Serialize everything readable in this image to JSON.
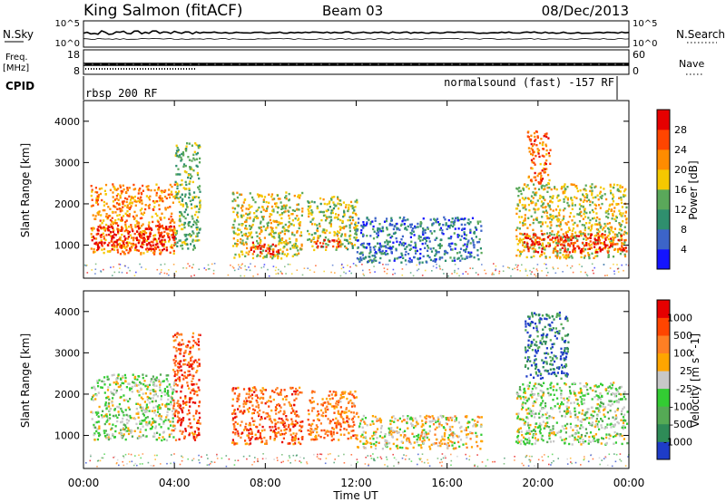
{
  "header": {
    "station": "King Salmon (fitACF)",
    "beam": "Beam 03",
    "date": "08/Dec/2013"
  },
  "noise_panel": {
    "left_label": "N.Sky",
    "right_label": "N.Search",
    "left_ticks": [
      "10^5",
      "10^0"
    ],
    "right_ticks": [
      "10^5",
      "10^0"
    ]
  },
  "freq_panel": {
    "left_label_line1": "Freq.",
    "left_label_line2": "[MHz]",
    "left_ticks": [
      "18",
      "8"
    ],
    "right_label": "Nave",
    "right_ticks": [
      "60",
      "0"
    ]
  },
  "cpid_panel": {
    "label": "CPID",
    "left_text": "rbsp 200 RF",
    "right_text": "normalsound (fast) -157 RF"
  },
  "chart_data": [
    {
      "type": "heatmap",
      "name": "power",
      "ylabel": "Slant Range [km]",
      "yticks": [
        "1000",
        "2000",
        "3000",
        "4000"
      ],
      "ylim": [
        200,
        4500
      ],
      "xlim_hours": [
        0,
        24
      ],
      "colorbar": {
        "label": "Power [dB]",
        "ticks": [
          "4",
          "8",
          "12",
          "16",
          "20",
          "24",
          "28"
        ],
        "colors": [
          "#1414ff",
          "#3c64c8",
          "#2f8f6e",
          "#5aa85a",
          "#f5c800",
          "#ff8c00",
          "#ff4500",
          "#e60000"
        ]
      },
      "regions": [
        {
          "t0": 0.3,
          "t1": 4.0,
          "r0": 800,
          "r1": 2500,
          "level": 0.7
        },
        {
          "t0": 0.3,
          "t1": 4.0,
          "r0": 900,
          "r1": 1500,
          "level": 0.95
        },
        {
          "t0": 4.0,
          "t1": 5.1,
          "r0": 900,
          "r1": 3500,
          "level": 0.45
        },
        {
          "t0": 6.5,
          "t1": 9.6,
          "r0": 700,
          "r1": 2300,
          "level": 0.55
        },
        {
          "t0": 7.3,
          "t1": 8.6,
          "r0": 800,
          "r1": 1100,
          "level": 0.9
        },
        {
          "t0": 9.8,
          "t1": 12.0,
          "r0": 900,
          "r1": 2200,
          "level": 0.5
        },
        {
          "t0": 10.2,
          "t1": 11.3,
          "r0": 950,
          "r1": 1150,
          "level": 0.9
        },
        {
          "t0": 12.0,
          "t1": 17.5,
          "r0": 600,
          "r1": 1700,
          "level": 0.25
        },
        {
          "t0": 19.0,
          "t1": 23.9,
          "r0": 700,
          "r1": 2500,
          "level": 0.55
        },
        {
          "t0": 19.3,
          "t1": 23.9,
          "r0": 850,
          "r1": 1300,
          "level": 0.9
        },
        {
          "t0": 19.5,
          "t1": 20.5,
          "r0": 2500,
          "r1": 3800,
          "level": 0.75
        }
      ]
    },
    {
      "type": "heatmap",
      "name": "velocity",
      "ylabel": "Slant Range [km]",
      "yticks": [
        "1000",
        "2000",
        "3000",
        "4000"
      ],
      "ylim": [
        200,
        4500
      ],
      "xlim_hours": [
        0,
        24
      ],
      "colorbar": {
        "label": "Velocity [m s^-1]",
        "ticks": [
          "1000",
          "500",
          "100",
          "25",
          "-25",
          "-100",
          "-500",
          "-1000"
        ],
        "colors": [
          "#1e3cc8",
          "#2e8b57",
          "#55aa55",
          "#33cc33",
          "#c8c8c8",
          "#ffa500",
          "#ff7f24",
          "#ff4500",
          "#e60000"
        ]
      },
      "regions": [
        {
          "t0": 0.3,
          "t1": 4.0,
          "r0": 900,
          "r1": 2500,
          "level": 0.45
        },
        {
          "t0": 3.9,
          "t1": 5.1,
          "r0": 900,
          "r1": 3500,
          "level": 0.82
        },
        {
          "t0": 6.5,
          "t1": 9.6,
          "r0": 800,
          "r1": 2200,
          "level": 0.78
        },
        {
          "t0": 9.8,
          "t1": 12.0,
          "r0": 900,
          "r1": 2100,
          "level": 0.72
        },
        {
          "t0": 12.0,
          "t1": 17.5,
          "r0": 700,
          "r1": 1500,
          "level": 0.55
        },
        {
          "t0": 19.0,
          "t1": 23.9,
          "r0": 800,
          "r1": 2300,
          "level": 0.45
        },
        {
          "t0": 19.4,
          "t1": 21.3,
          "r0": 2400,
          "r1": 4000,
          "level": 0.12
        }
      ]
    }
  ],
  "xaxis": {
    "label": "Time UT",
    "ticks": [
      "00:00",
      "04:00",
      "08:00",
      "12:00",
      "16:00",
      "20:00",
      "00:00"
    ]
  }
}
